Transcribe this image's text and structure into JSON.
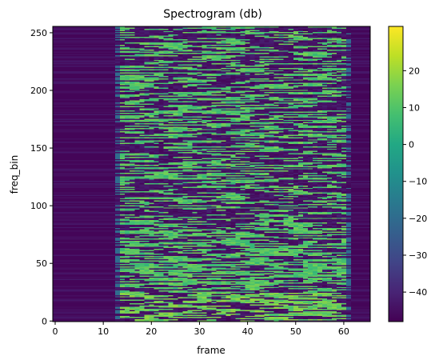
{
  "chart_data": {
    "type": "heatmap",
    "title": "Spectrogram (db)",
    "xlabel": "frame",
    "ylabel": "freq_bin",
    "xlim": [
      -0.5,
      65.5
    ],
    "ylim": [
      -0.5,
      255.5
    ],
    "x_ticks": [
      0,
      10,
      20,
      30,
      40,
      50,
      60
    ],
    "y_ticks": [
      0,
      50,
      100,
      150,
      200,
      250
    ],
    "n_frames": 66,
    "n_freq_bins": 256,
    "signal_frames": [
      13,
      61
    ],
    "colorbar": {
      "ticks": [
        20,
        10,
        0,
        -10,
        -20,
        -30,
        -40
      ],
      "tick_labels": [
        "20",
        "10",
        "0",
        "−10",
        "−20",
        "−30",
        "−40"
      ],
      "vmin": -48,
      "vmax": 32,
      "colormap": "viridis"
    }
  }
}
